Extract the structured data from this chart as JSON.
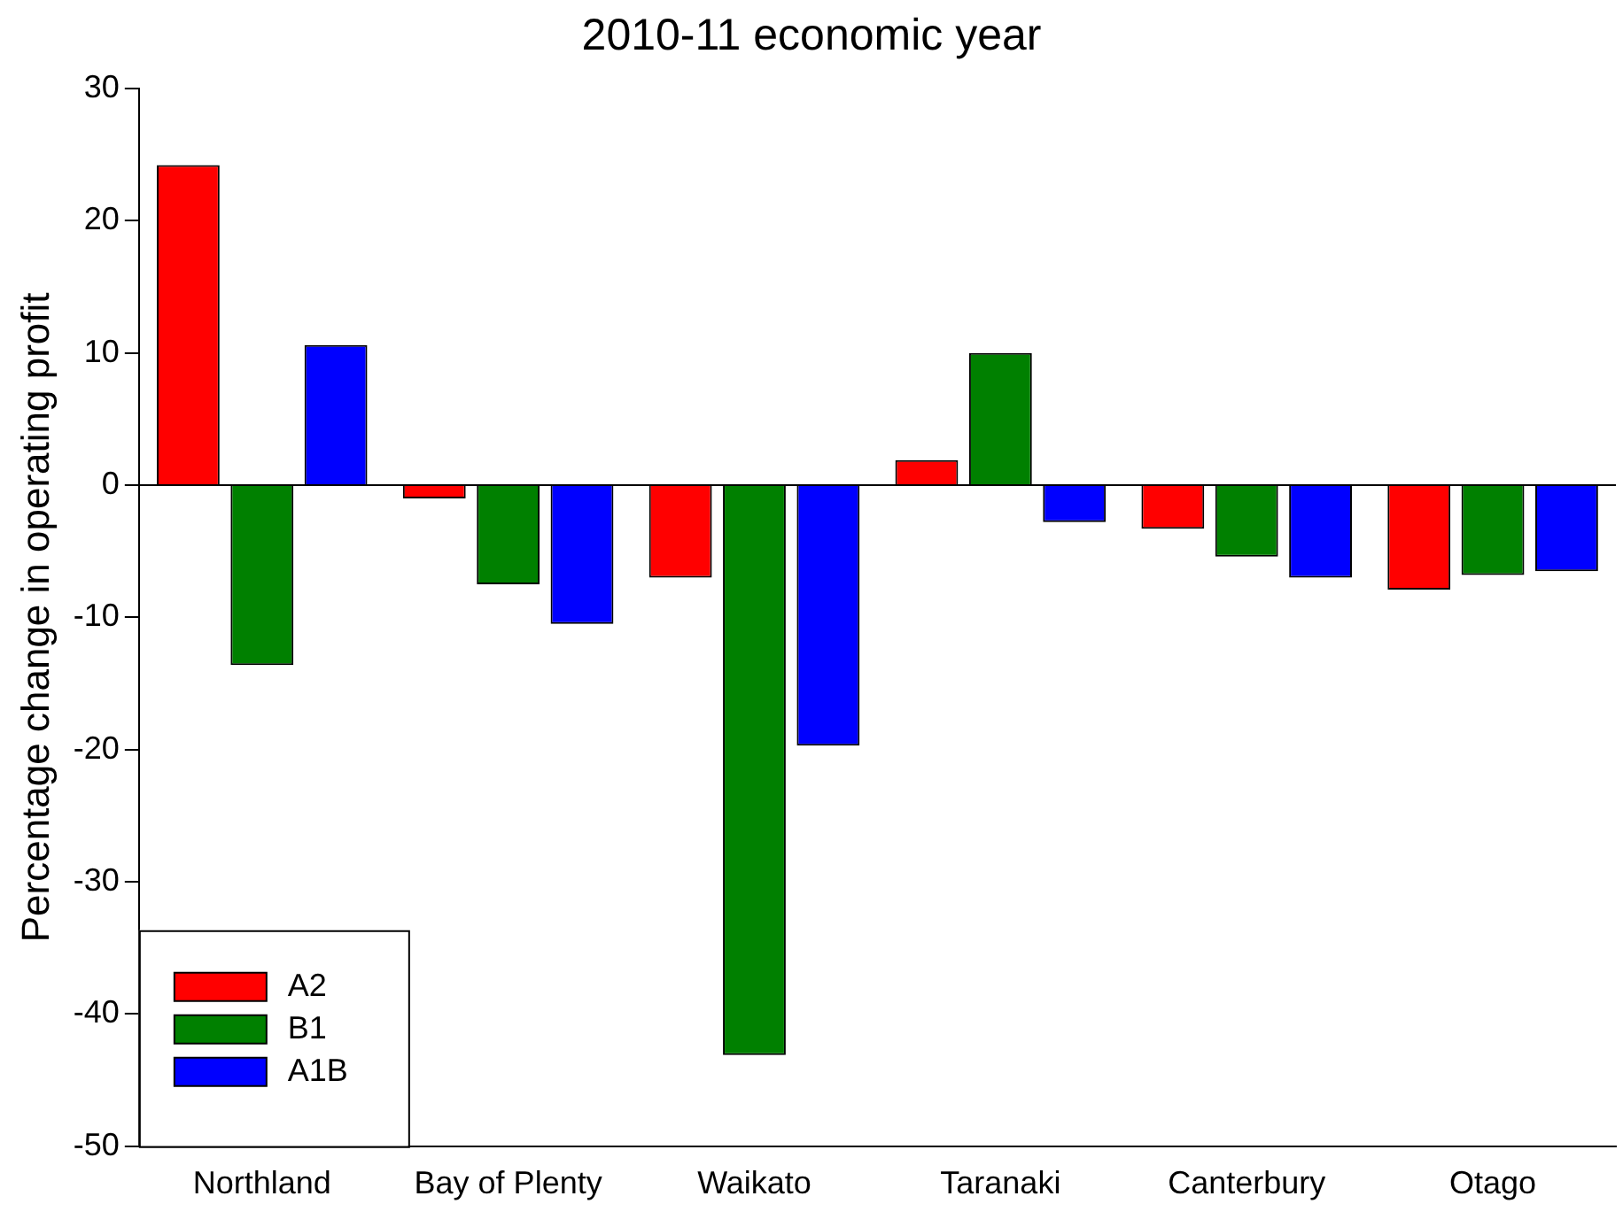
{
  "chart_data": {
    "type": "bar",
    "title": "2010-11 economic year",
    "ylabel": "Percentage change in operating profit",
    "categories": [
      "Northland",
      "Bay of Plenty",
      "Waikato",
      "Taranaki",
      "Canterbury",
      "Otago"
    ],
    "series": [
      {
        "name": "A2",
        "color": "#ff0000",
        "values": [
          24.2,
          -1.0,
          -7.0,
          1.9,
          -3.3,
          -7.9
        ]
      },
      {
        "name": "B1",
        "color": "#008000",
        "values": [
          -13.6,
          -7.5,
          -43.1,
          10.0,
          -5.4,
          -6.8
        ]
      },
      {
        "name": "A1B",
        "color": "#0000ff",
        "values": [
          10.6,
          -10.5,
          -19.7,
          -2.8,
          -7.0,
          -6.5
        ]
      }
    ],
    "ylim": [
      -50,
      30
    ],
    "yticks": [
      -50,
      -40,
      -30,
      -20,
      -10,
      0,
      10,
      20,
      30
    ],
    "ref_lines": [
      {
        "axis": "y",
        "value": 0,
        "color": "#000000"
      }
    ],
    "grid": false,
    "legend": "bottom left"
  }
}
